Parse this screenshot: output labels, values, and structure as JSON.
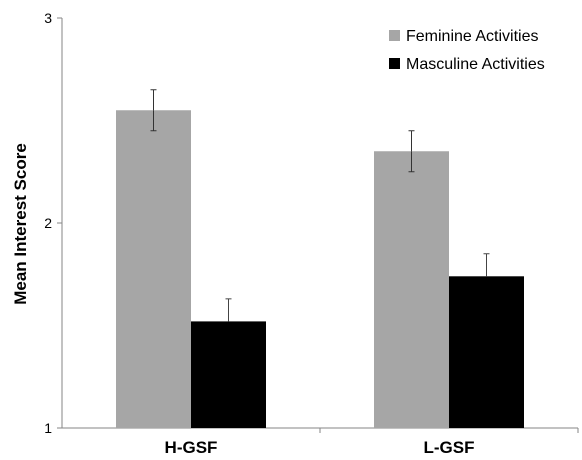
{
  "chart_data": {
    "type": "bar",
    "categories": [
      "H-GSF",
      "L-GSF"
    ],
    "series": [
      {
        "name": "Feminine Activities",
        "values": [
          2.55,
          2.35
        ],
        "errors": [
          0.1,
          0.1
        ],
        "color": "#a6a6a6"
      },
      {
        "name": "Masculine Activities",
        "values": [
          1.52,
          1.74
        ],
        "errors": [
          0.11,
          0.11
        ],
        "color": "#000000"
      }
    ],
    "title": "",
    "xlabel": "",
    "ylabel": "Mean Interest Score",
    "ylim": [
      1,
      3
    ],
    "yticks": [
      "1",
      "2",
      "3"
    ],
    "grid": false,
    "legend_position": "top-right"
  }
}
